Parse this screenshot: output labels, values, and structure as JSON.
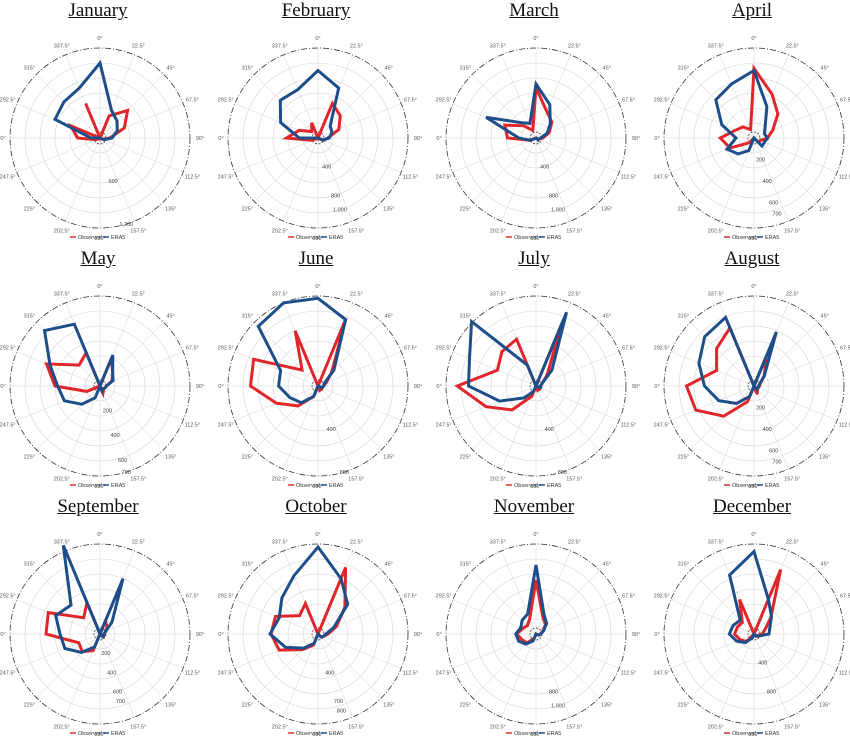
{
  "colors": {
    "observed": "#e0262a",
    "era5": "#1d4e89",
    "grid": "#d4d4d4",
    "axis": "#333333"
  },
  "angle_labels": [
    "0°",
    "22.5°",
    "45°",
    "67.5°",
    "90°",
    "112.5°",
    "135°",
    "157.5°",
    "180°",
    "202.5°",
    "225°",
    "247.5°",
    "270°",
    "292.5°",
    "315°",
    "337.5°"
  ],
  "legend": {
    "observed": "Observed",
    "era5": "ERA5"
  },
  "chart_data": [
    {
      "type": "polar_line",
      "title": "January",
      "directions_deg": [
        0,
        22.5,
        45,
        67.5,
        90,
        112.5,
        135,
        157.5,
        180,
        202.5,
        225,
        247.5,
        270,
        292.5,
        315,
        337.5
      ],
      "rmax": 1200,
      "radial_labels": [
        {
          "value": 600,
          "text": "600"
        },
        {
          "value": 1200,
          "text": "1,200"
        }
      ],
      "series": [
        {
          "name": "Observed",
          "values": [
            0,
            320,
            520,
            350,
            130,
            40,
            0,
            0,
            0,
            0,
            0,
            60,
            300,
            420,
            0,
            500
          ]
        },
        {
          "name": "ERA5",
          "values": [
            1000,
            400,
            320,
            250,
            160,
            60,
            0,
            0,
            0,
            0,
            0,
            0,
            120,
            650,
            680,
            720
          ]
        }
      ]
    },
    {
      "type": "polar_line",
      "title": "February",
      "directions_deg": [
        0,
        22.5,
        45,
        67.5,
        90,
        112.5,
        135,
        157.5,
        180,
        202.5,
        225,
        247.5,
        270,
        292.5,
        315,
        337.5
      ],
      "rmax": 1200,
      "radial_labels": [
        {
          "value": 400,
          "text": "400"
        },
        {
          "value": 800,
          "text": "800"
        },
        {
          "value": 1000,
          "text": "1,000"
        }
      ],
      "series": [
        {
          "name": "Observed",
          "values": [
            0,
            500,
            420,
            300,
            130,
            80,
            0,
            0,
            0,
            0,
            0,
            80,
            420,
            270,
            120,
            220
          ]
        },
        {
          "name": "ERA5",
          "values": [
            900,
            720,
            230,
            200,
            150,
            70,
            0,
            0,
            0,
            0,
            0,
            0,
            250,
            540,
            710,
            700
          ]
        }
      ]
    },
    {
      "type": "polar_line",
      "title": "March",
      "directions_deg": [
        0,
        22.5,
        45,
        67.5,
        90,
        112.5,
        135,
        157.5,
        180,
        202.5,
        225,
        247.5,
        270,
        292.5,
        315,
        337.5
      ],
      "rmax": 1200,
      "radial_labels": [
        {
          "value": 400,
          "text": "400"
        },
        {
          "value": 800,
          "text": "800"
        },
        {
          "value": 1000,
          "text": "1,000"
        }
      ],
      "series": [
        {
          "name": "Observed",
          "values": [
            670,
            380,
            300,
            190,
            90,
            40,
            0,
            0,
            0,
            0,
            0,
            80,
            380,
            450,
            230,
            110
          ]
        },
        {
          "name": "ERA5",
          "values": [
            720,
            480,
            270,
            160,
            60,
            40,
            40,
            0,
            0,
            0,
            0,
            80,
            230,
            720,
            290,
            210
          ]
        }
      ]
    },
    {
      "type": "polar_line",
      "title": "April",
      "directions_deg": [
        0,
        22.5,
        45,
        67.5,
        90,
        112.5,
        135,
        157.5,
        180,
        202.5,
        225,
        247.5,
        270,
        292.5,
        315,
        337.5
      ],
      "rmax": 800,
      "radial_labels": [
        {
          "value": 200,
          "text": "200"
        },
        {
          "value": 400,
          "text": "400"
        },
        {
          "value": 600,
          "text": "600"
        },
        {
          "value": 700,
          "text": "700"
        }
      ],
      "series": [
        {
          "name": "Observed",
          "values": [
            620,
            420,
            300,
            180,
            120,
            60,
            60,
            0,
            0,
            0,
            60,
            230,
            300,
            180,
            140,
            80
          ]
        },
        {
          "name": "ERA5",
          "values": [
            600,
            300,
            140,
            100,
            120,
            100,
            100,
            0,
            0,
            120,
            200,
            260,
            160,
            310,
            480,
            520
          ]
        }
      ]
    },
    {
      "type": "polar_line",
      "title": "May",
      "directions_deg": [
        0,
        22.5,
        45,
        67.5,
        90,
        112.5,
        135,
        157.5,
        180,
        202.5,
        225,
        247.5,
        270,
        292.5,
        315,
        337.5
      ],
      "rmax": 700,
      "radial_labels": [
        {
          "value": 200,
          "text": "200"
        },
        {
          "value": 400,
          "text": "400"
        },
        {
          "value": 600,
          "text": "600"
        },
        {
          "value": 700,
          "text": "700"
        }
      ],
      "series": [
        {
          "name": "Observed",
          "values": [
            0,
            230,
            140,
            100,
            50,
            40,
            40,
            60,
            0,
            0,
            0,
            110,
            350,
            450,
            230,
            280
          ]
        },
        {
          "name": "ERA5",
          "values": [
            0,
            260,
            140,
            110,
            50,
            40,
            30,
            40,
            0,
            100,
            200,
            300,
            330,
            420,
            610,
            520
          ]
        }
      ]
    },
    {
      "type": "polar_line",
      "title": "June",
      "directions_deg": [
        0,
        22.5,
        45,
        67.5,
        90,
        112.5,
        135,
        157.5,
        180,
        202.5,
        225,
        247.5,
        270,
        292.5,
        315,
        337.5
      ],
      "rmax": 800,
      "radial_labels": [
        {
          "value": 400,
          "text": "400"
        },
        {
          "value": 800,
          "text": "800"
        }
      ],
      "series": [
        {
          "name": "Observed",
          "values": [
            0,
            650,
            170,
            80,
            50,
            40,
            40,
            40,
            0,
            100,
            250,
            400,
            600,
            620,
            200,
            530
          ]
        },
        {
          "name": "ERA5",
          "values": [
            780,
            640,
            200,
            60,
            50,
            40,
            0,
            0,
            0,
            100,
            210,
            270,
            350,
            360,
            750,
            800
          ]
        }
      ]
    },
    {
      "type": "polar_line",
      "title": "July",
      "directions_deg": [
        0,
        22.5,
        45,
        67.5,
        90,
        112.5,
        135,
        157.5,
        180,
        202.5,
        225,
        247.5,
        270,
        292.5,
        315,
        337.5
      ],
      "rmax": 800,
      "radial_labels": [
        {
          "value": 400,
          "text": "400"
        },
        {
          "value": 800,
          "text": "800"
        }
      ],
      "series": [
        {
          "name": "Observed",
          "values": [
            0,
            600,
            140,
            60,
            40,
            40,
            40,
            40,
            0,
            100,
            300,
            480,
            700,
            370,
            430,
            450
          ]
        },
        {
          "name": "ERA5",
          "values": [
            0,
            710,
            200,
            60,
            40,
            40,
            0,
            0,
            0,
            50,
            150,
            350,
            600,
            640,
            810,
            200
          ]
        }
      ]
    },
    {
      "type": "polar_line",
      "title": "August",
      "directions_deg": [
        0,
        22.5,
        45,
        67.5,
        90,
        112.5,
        135,
        157.5,
        180,
        202.5,
        225,
        247.5,
        270,
        292.5,
        315,
        337.5
      ],
      "rmax": 800,
      "radial_labels": [
        {
          "value": 200,
          "text": "200"
        },
        {
          "value": 400,
          "text": "400"
        },
        {
          "value": 600,
          "text": "600"
        },
        {
          "value": 700,
          "text": "700"
        }
      ],
      "series": [
        {
          "name": "Observed",
          "values": [
            0,
            280,
            130,
            60,
            50,
            40,
            40,
            80,
            0,
            150,
            380,
            560,
            600,
            360,
            470,
            560
          ]
        },
        {
          "name": "ERA5",
          "values": [
            0,
            520,
            130,
            60,
            40,
            40,
            40,
            0,
            0,
            100,
            220,
            340,
            440,
            530,
            620,
            660
          ]
        }
      ]
    },
    {
      "type": "polar_line",
      "title": "September",
      "directions_deg": [
        0,
        22.5,
        45,
        67.5,
        90,
        112.5,
        135,
        157.5,
        180,
        202.5,
        225,
        247.5,
        270,
        292.5,
        315,
        337.5
      ],
      "rmax": 900,
      "radial_labels": [
        {
          "value": 200,
          "text": "200"
        },
        {
          "value": 400,
          "text": "400"
        },
        {
          "value": 600,
          "text": "600"
        },
        {
          "value": 700,
          "text": "700"
        }
      ],
      "series": [
        {
          "name": "Observed",
          "values": [
            0,
            140,
            100,
            60,
            40,
            40,
            0,
            0,
            0,
            180,
            250,
            230,
            540,
            560,
            230,
            340
          ]
        },
        {
          "name": "ERA5",
          "values": [
            0,
            600,
            170,
            60,
            40,
            40,
            40,
            0,
            0,
            140,
            260,
            380,
            400,
            480,
            410,
            960
          ]
        }
      ]
    },
    {
      "type": "polar_line",
      "title": "October",
      "directions_deg": [
        0,
        22.5,
        45,
        67.5,
        90,
        112.5,
        135,
        157.5,
        180,
        202.5,
        225,
        247.5,
        270,
        292.5,
        315,
        337.5
      ],
      "rmax": 900,
      "radial_labels": [
        {
          "value": 700,
          "text": "700"
        },
        {
          "value": 400,
          "text": "400"
        },
        {
          "value": 800,
          "text": "800"
        }
      ],
      "series": [
        {
          "name": "Observed",
          "values": [
            0,
            720,
            380,
            200,
            100,
            60,
            40,
            0,
            0,
            120,
            220,
            420,
            470,
            460,
            260,
            330
          ]
        },
        {
          "name": "ERA5",
          "values": [
            870,
            600,
            420,
            170,
            80,
            60,
            40,
            0,
            0,
            100,
            200,
            350,
            480,
            420,
            510,
            630
          ]
        }
      ]
    },
    {
      "type": "polar_line",
      "title": "November",
      "directions_deg": [
        0,
        22.5,
        45,
        67.5,
        90,
        112.5,
        135,
        157.5,
        180,
        202.5,
        225,
        247.5,
        270,
        292.5,
        315,
        337.5
      ],
      "rmax": 1200,
      "radial_labels": [
        {
          "value": 800,
          "text": "800"
        },
        {
          "value": 1000,
          "text": "1,000"
        }
      ],
      "series": [
        {
          "name": "Observed",
          "values": [
            720,
            240,
            180,
            100,
            60,
            40,
            0,
            0,
            0,
            60,
            170,
            200,
            260,
            190,
            160,
            220
          ]
        },
        {
          "name": "ERA5",
          "values": [
            920,
            280,
            200,
            110,
            60,
            40,
            0,
            0,
            0,
            100,
            190,
            250,
            270,
            220,
            260,
            290
          ]
        }
      ]
    },
    {
      "type": "polar_line",
      "title": "December",
      "directions_deg": [
        0,
        22.5,
        45,
        67.5,
        90,
        112.5,
        135,
        157.5,
        180,
        202.5,
        225,
        247.5,
        270,
        292.5,
        315,
        337.5
      ],
      "rmax": 1200,
      "radial_labels": [
        {
          "value": 400,
          "text": "400"
        },
        {
          "value": 800,
          "text": "800"
        }
      ],
      "series": [
        {
          "name": "Observed",
          "values": [
            0,
            930,
            320,
            160,
            110,
            50,
            40,
            0,
            0,
            0,
            140,
            200,
            260,
            240,
            220,
            500
          ]
        },
        {
          "name": "ERA5",
          "values": [
            1100,
            500,
            330,
            230,
            200,
            70,
            40,
            0,
            0,
            50,
            160,
            250,
            330,
            300,
            260,
            850
          ]
        }
      ]
    }
  ]
}
